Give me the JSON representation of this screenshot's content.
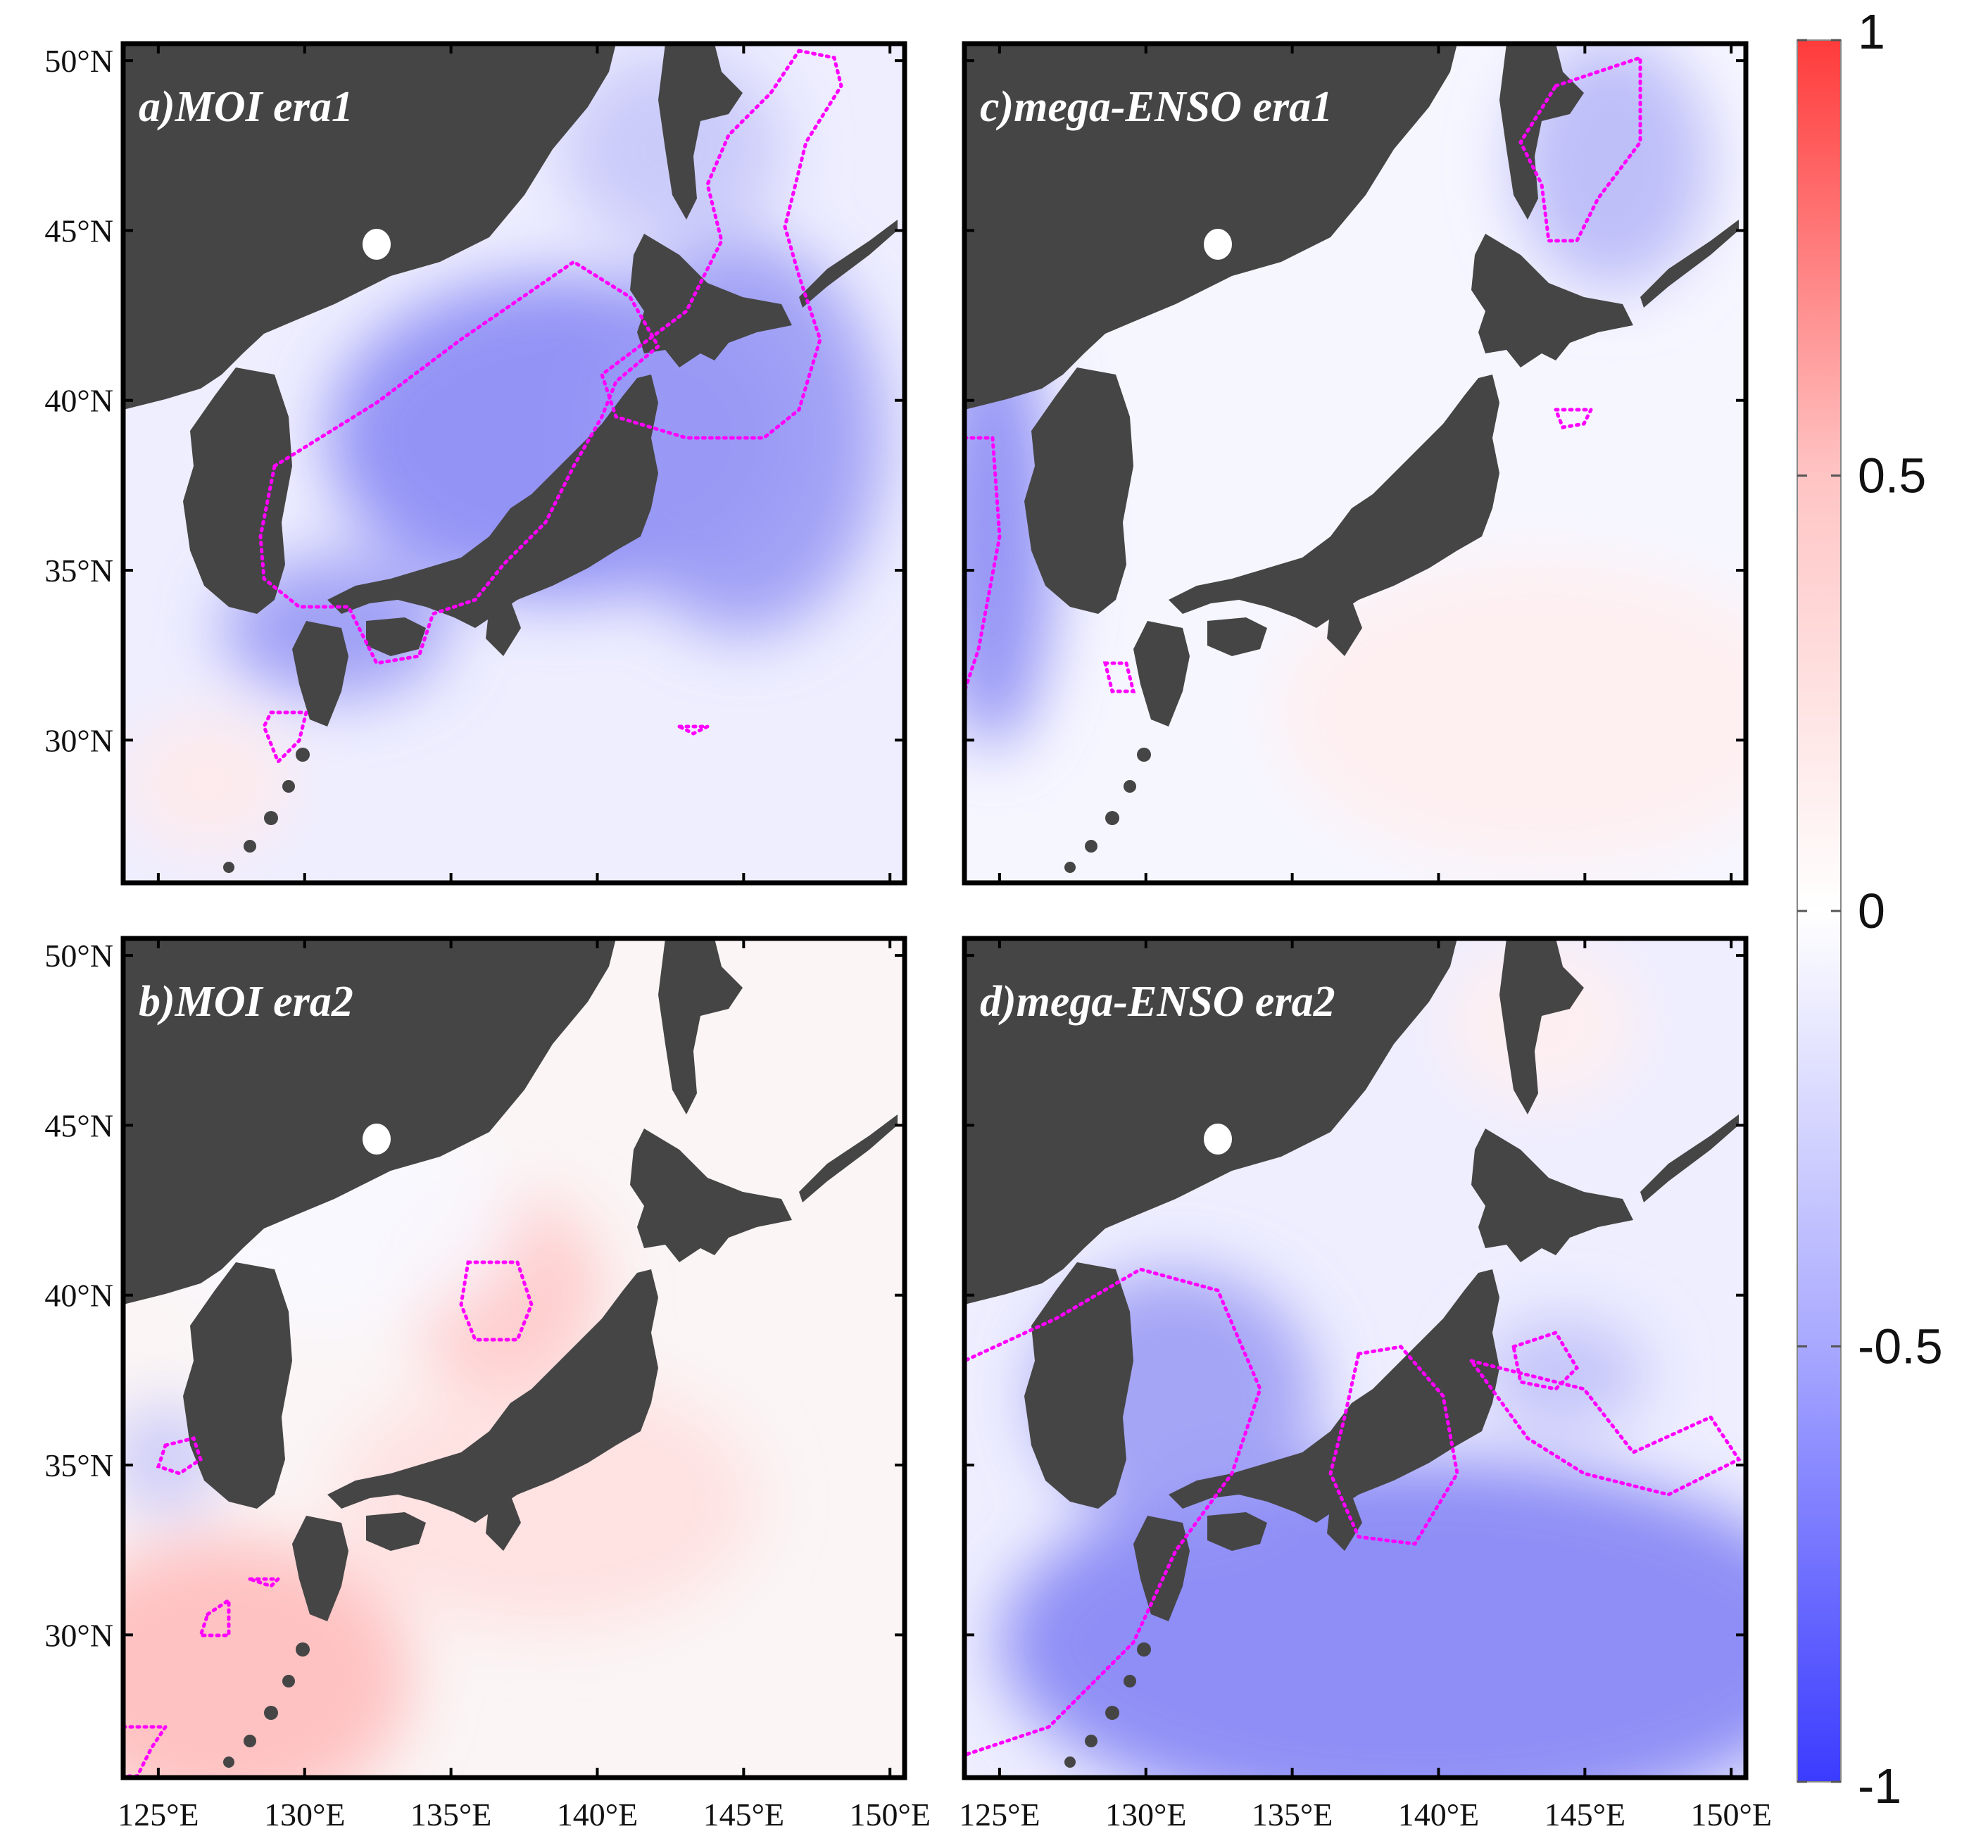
{
  "figure": {
    "panels": [
      {
        "id": "a",
        "title": "a)MOI era1",
        "row": 0,
        "col": 0,
        "show_y_labels": true,
        "show_x_labels": false
      },
      {
        "id": "c",
        "title": "c)mega-ENSO era1",
        "row": 0,
        "col": 1,
        "show_y_labels": false,
        "show_x_labels": false
      },
      {
        "id": "b",
        "title": "b)MOI era2",
        "row": 1,
        "col": 0,
        "show_y_labels": true,
        "show_x_labels": true
      },
      {
        "id": "d",
        "title": "d)mega-ENSO era2",
        "row": 1,
        "col": 1,
        "show_y_labels": false,
        "show_x_labels": true
      }
    ],
    "x_ticks": [
      {
        "value": 125,
        "label": "125°E"
      },
      {
        "value": 130,
        "label": "130°E"
      },
      {
        "value": 135,
        "label": "135°E"
      },
      {
        "value": 140,
        "label": "140°E"
      },
      {
        "value": 145,
        "label": "145°E"
      },
      {
        "value": 150,
        "label": "150°E"
      }
    ],
    "y_ticks": [
      {
        "value": 30,
        "label": "30°N"
      },
      {
        "value": 35,
        "label": "35°N"
      },
      {
        "value": 40,
        "label": "40°N"
      },
      {
        "value": 45,
        "label": "45°N"
      },
      {
        "value": 50,
        "label": "50°N"
      }
    ],
    "lon_range": [
      123.8,
      150.5
    ],
    "lat_range": [
      25.8,
      50.5
    ],
    "colorbar": {
      "range": [
        -1,
        1
      ],
      "ticks": [
        {
          "value": 1,
          "label": "1"
        },
        {
          "value": 0.5,
          "label": "0.5"
        },
        {
          "value": 0,
          "label": "0"
        },
        {
          "value": -0.5,
          "label": "-0.5"
        },
        {
          "value": -1,
          "label": "-1"
        }
      ],
      "colors": {
        "max": "#ff3b3b",
        "mid": "#ffffff",
        "min": "#3b3bff"
      }
    },
    "colors": {
      "land": "#454545",
      "significance_contour": "#ff00ff",
      "frame": "#000000"
    }
  }
}
